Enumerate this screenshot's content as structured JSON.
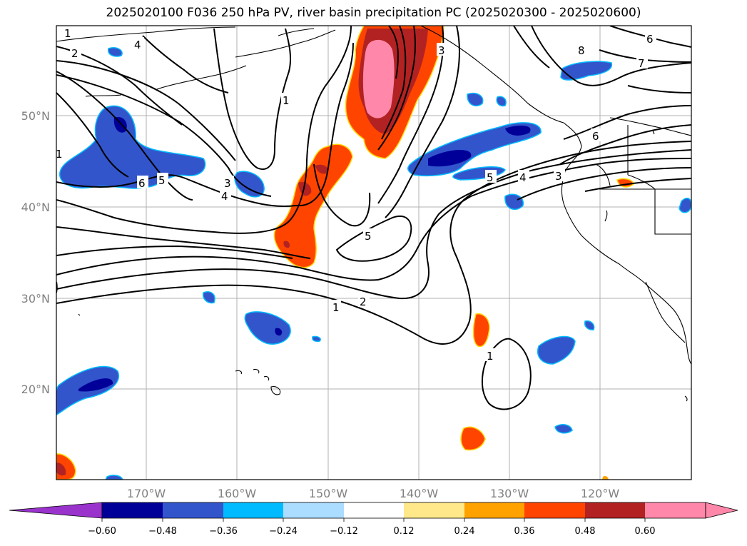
{
  "title": "2025020100 F036 250 hPa PV, river basin precipitation PC (2025020300 - 2025020600)",
  "map": {
    "lon_ticks": [
      "170°W",
      "160°W",
      "150°W",
      "140°W",
      "130°W",
      "120°W"
    ],
    "lat_ticks": [
      "50°N",
      "40°N",
      "30°N",
      "20°N"
    ],
    "pv_contour_labels": [
      "1",
      "2",
      "1",
      "3",
      "4",
      "5",
      "6",
      "5",
      "3",
      "4",
      "5",
      "6",
      "8",
      "6",
      "7",
      "1",
      "2",
      "1",
      "1",
      "4",
      "3"
    ]
  },
  "colorbar": {
    "ticks": [
      "−0.60",
      "−0.48",
      "−0.36",
      "−0.24",
      "−0.12",
      "0.12",
      "0.24",
      "0.36",
      "0.48",
      "0.60"
    ],
    "under_color": "#9933cc",
    "over_color": "#ff88aa",
    "colors": [
      "#000099",
      "#3355cc",
      "#00bbff",
      "#aaddff",
      "#ffffff",
      "#ffe88a",
      "#ffa200",
      "#ff4400",
      "#b22222",
      "#ff88aa"
    ]
  }
}
